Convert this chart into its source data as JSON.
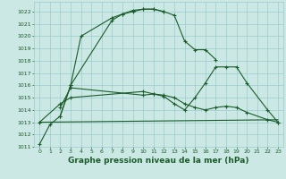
{
  "bg_color": "#cce8e4",
  "grid_color": "#99cccc",
  "line_color": "#1a5c2a",
  "xlabel": "Graphe pression niveau de la mer (hPa)",
  "xlabel_fontsize": 6.5,
  "xlim": [
    -0.5,
    23.5
  ],
  "ylim": [
    1011.0,
    1022.8
  ],
  "yticks": [
    1011,
    1012,
    1013,
    1014,
    1015,
    1016,
    1017,
    1018,
    1019,
    1020,
    1021,
    1022
  ],
  "xticks": [
    0,
    1,
    2,
    3,
    4,
    5,
    6,
    7,
    8,
    9,
    10,
    11,
    12,
    13,
    14,
    15,
    16,
    17,
    18,
    19,
    20,
    21,
    22,
    23
  ],
  "line1_x": [
    0,
    1,
    2,
    3,
    7,
    8,
    9,
    10,
    11,
    12,
    13,
    14,
    15,
    16,
    17
  ],
  "line1_y": [
    1011.2,
    1012.8,
    1013.5,
    1016.0,
    1021.3,
    1021.8,
    1022.1,
    1022.2,
    1022.2,
    1022.0,
    1021.7,
    1019.6,
    1018.9,
    1018.9,
    1018.1
  ],
  "line2_x": [
    2,
    3,
    4,
    7,
    8,
    9,
    10,
    11,
    12
  ],
  "line2_y": [
    1013.5,
    1016.0,
    1020.0,
    1021.5,
    1021.8,
    1022.0,
    1022.2,
    1022.2,
    1022.0
  ],
  "line3_x": [
    2,
    3,
    10,
    11,
    12,
    13,
    14,
    15,
    16,
    17,
    18,
    19,
    20,
    22,
    23
  ],
  "line3_y": [
    1014.2,
    1015.8,
    1015.2,
    1015.3,
    1015.1,
    1014.5,
    1014.0,
    1015.0,
    1016.2,
    1017.5,
    1017.5,
    1017.5,
    1016.2,
    1014.0,
    1013.0
  ],
  "line4_x": [
    0,
    2,
    3,
    10,
    11,
    12,
    13,
    14,
    15,
    16,
    17,
    18,
    19,
    20,
    22,
    23
  ],
  "line4_y": [
    1013.0,
    1014.5,
    1015.0,
    1015.5,
    1015.3,
    1015.2,
    1015.0,
    1014.5,
    1014.2,
    1014.0,
    1014.2,
    1014.3,
    1014.2,
    1013.8,
    1013.2,
    1013.0
  ],
  "line5_x": [
    0,
    23
  ],
  "line5_y": [
    1013.0,
    1013.2
  ]
}
